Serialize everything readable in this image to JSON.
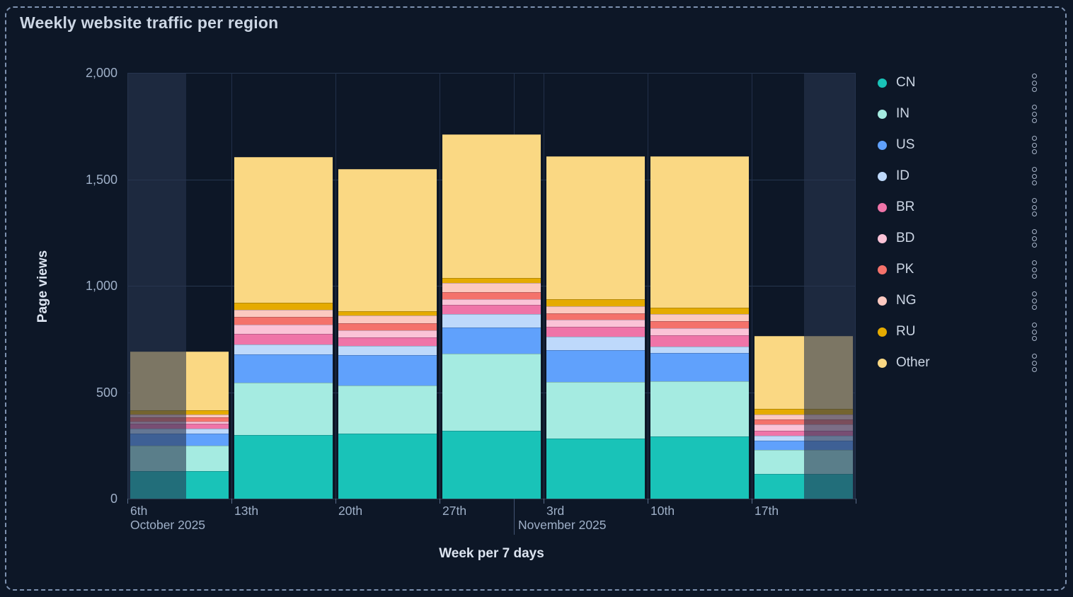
{
  "panel": {
    "title": "Weekly website traffic per region"
  },
  "chart_data": {
    "type": "bar",
    "stacked": true,
    "title": "Weekly website traffic per region",
    "xlabel": "Week per 7 days",
    "ylabel": "Page views",
    "ylim": [
      0,
      2000
    ],
    "yticks": [
      {
        "value": 0,
        "label": "0"
      },
      {
        "value": 500,
        "label": "500"
      },
      {
        "value": 1000,
        "label": "1,000"
      },
      {
        "value": 1500,
        "label": "1,500"
      },
      {
        "value": 2000,
        "label": "2,000"
      }
    ],
    "categories": [
      "6th",
      "13th",
      "20th",
      "27th",
      "3rd",
      "10th",
      "17th"
    ],
    "month_labels": [
      {
        "label": "October 2025",
        "anchor_bin": 0
      },
      {
        "label": "November 2025",
        "anchor_bin": 4
      }
    ],
    "series": [
      {
        "name": "CN",
        "color": "#19c3b8",
        "values": [
          130,
          300,
          305,
          320,
          282,
          293,
          115
        ]
      },
      {
        "name": "IN",
        "color": "#a5ebe1",
        "values": [
          120,
          245,
          227,
          360,
          266,
          260,
          115
        ]
      },
      {
        "name": "US",
        "color": "#60a1fc",
        "values": [
          57,
          133,
          144,
          123,
          150,
          130,
          41
        ]
      },
      {
        "name": "ID",
        "color": "#bed9fb",
        "values": [
          22,
          46,
          41,
          63,
          63,
          31,
          26
        ]
      },
      {
        "name": "BR",
        "color": "#ef74a8",
        "values": [
          22,
          51,
          42,
          44,
          48,
          55,
          22
        ]
      },
      {
        "name": "BD",
        "color": "#fbc3d7",
        "values": [
          12,
          41,
          33,
          28,
          33,
          33,
          30
        ]
      },
      {
        "name": "PK",
        "color": "#f4726b",
        "values": [
          18,
          37,
          31,
          33,
          28,
          33,
          22
        ]
      },
      {
        "name": "NG",
        "color": "#fcc9c0",
        "values": [
          16,
          33,
          37,
          42,
          33,
          33,
          26
        ]
      },
      {
        "name": "RU",
        "color": "#e5ab00",
        "values": [
          17,
          33,
          22,
          25,
          35,
          28,
          24
        ]
      },
      {
        "name": "Other",
        "color": "#fad883",
        "values": [
          278,
          687,
          668,
          672,
          670,
          711,
          344
        ]
      }
    ],
    "legend_position": "right",
    "grid": true,
    "partial_week_shading": {
      "left_band_fraction": [
        0,
        0.081
      ],
      "right_band_fraction": [
        0.929,
        1.0
      ]
    },
    "month_divider_fraction": 0.531
  },
  "legend": {
    "menu_icon": "kebab-dots-vertical-icon"
  },
  "colors": {
    "background": "#0d1727",
    "panel_border": "#7e92b0",
    "grid": "#26364f",
    "partial_shade": "rgba(40,54,80,0.6)",
    "axis_text": "#9fb0c8",
    "title_text": "#ccd6e4"
  }
}
